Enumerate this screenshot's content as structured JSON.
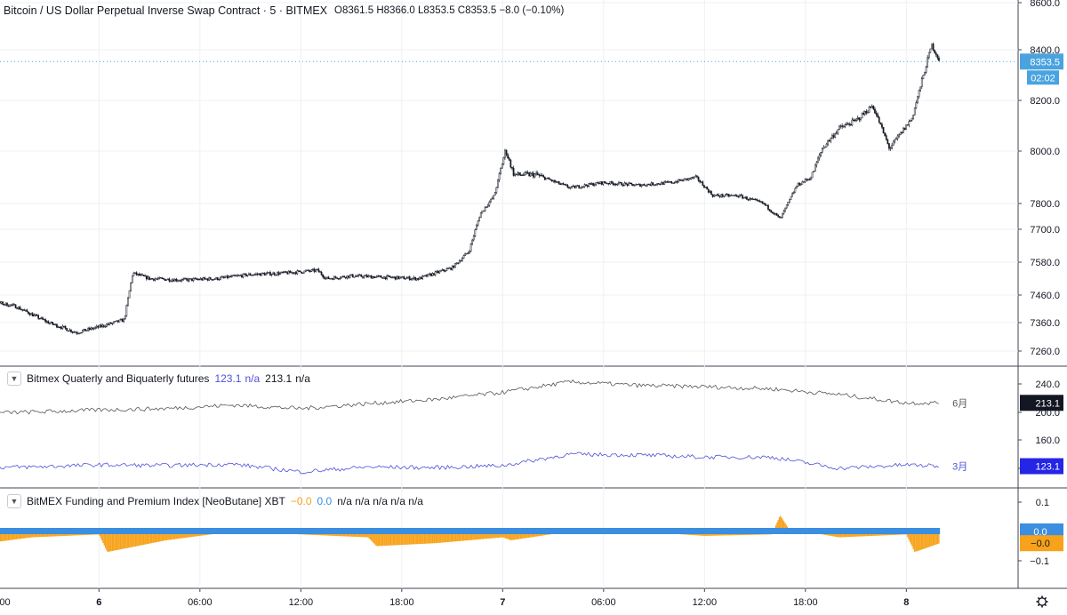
{
  "header": {
    "title": "Bitcoin / US Dollar Perpetual Inverse Swap Contract · 5 · BITMEX",
    "ohlc": "O8361.5  H8366.0  L8353.5  C8353.5  −8.0 (−0.10%)"
  },
  "main_axis": {
    "ticks": [
      "8600.0",
      "8400.0",
      "8200.0",
      "8000.0",
      "7800.0",
      "7700.0",
      "7580.0",
      "7460.0",
      "7360.0",
      "7260.0"
    ],
    "last_price": "8353.5",
    "countdown": "02:02"
  },
  "indicator1": {
    "name": "Bitmex Quaterly and Biquaterly futures",
    "value_a": "123.1",
    "value_a_na": "n/a",
    "value_b": "213.1",
    "value_b_na": "n/a",
    "ticks": [
      "240.0",
      "200.0",
      "160.0",
      "120.0"
    ],
    "badge_top": "213.1",
    "badge_bottom": "123.1",
    "label_top": "6月",
    "label_bottom": "3月",
    "color_a": "#4f4fd8",
    "color_b": "#555555"
  },
  "indicator2": {
    "name": "BitMEX Funding and Premium Index [NeoButane] XBT",
    "value_a": "−0.0",
    "value_b": "0.0",
    "tail": "n/a  n/a  n/a  n/a  n/a",
    "ticks": [
      "0.1",
      "−0.1"
    ],
    "badge_top": "0.0",
    "badge_bottom": "−0.0",
    "color_premium": "#f7a21a",
    "color_funding": "#3b8ee0"
  },
  "time_axis": {
    "labels": [
      "18:00",
      "6",
      "06:00",
      "12:00",
      "18:00",
      "7",
      "06:00",
      "12:00",
      "18:00",
      "8"
    ],
    "settings_icon": "gear-icon"
  },
  "chart_data": [
    {
      "type": "candlestick",
      "title": "Bitcoin / US Dollar Perpetual Inverse Swap Contract · 5 · BITMEX",
      "x": [
        "5 16:10",
        "5 17:20",
        "5 19:00",
        "5 21:00",
        "5 22:40",
        "6 00:00",
        "6 01:30",
        "6 02:00",
        "6 03:00",
        "6 05:00",
        "6 07:00",
        "6 09:00",
        "6 11:00",
        "6 13:00",
        "6 13:30",
        "6 15:00",
        "6 17:00",
        "6 19:00",
        "6 21:00",
        "6 22:00",
        "6 22:40",
        "6 23:30",
        "7 00:10",
        "7 00:40",
        "7 02:00",
        "7 04:00",
        "7 06:00",
        "7 08:00",
        "7 10:00",
        "7 11:30",
        "7 12:30",
        "7 14:00",
        "7 15:30",
        "7 16:30",
        "7 17:30",
        "7 18:20",
        "7 19:00",
        "7 20:00",
        "7 21:00",
        "7 22:00",
        "7 23:00",
        "8 00:20",
        "8 01:30",
        "8 02:00"
      ],
      "close": [
        7445,
        7440,
        7420,
        7360,
        7325,
        7345,
        7370,
        7540,
        7520,
        7515,
        7520,
        7535,
        7540,
        7550,
        7520,
        7530,
        7525,
        7520,
        7560,
        7620,
        7760,
        7830,
        8005,
        7910,
        7910,
        7860,
        7880,
        7870,
        7880,
        7900,
        7830,
        7830,
        7800,
        7740,
        7870,
        7900,
        8010,
        8090,
        8120,
        8180,
        8010,
        8130,
        8420,
        8353.5
      ],
      "yrange": [
        7200,
        8620
      ]
    },
    {
      "type": "line",
      "title": "Bitmex Quaterly and Biquaterly futures",
      "series": [
        {
          "name": "6月",
          "x": [
            "5 16:00",
            "5 20:00",
            "6 00:00",
            "6 04:00",
            "6 08:00",
            "6 12:00",
            "6 16:00",
            "6 20:00",
            "7 00:00",
            "7 04:00",
            "7 08:00",
            "7 12:00",
            "7 16:00",
            "7 20:00",
            "8 00:00",
            "8 02:00"
          ],
          "values": [
            198,
            200,
            203,
            205,
            210,
            205,
            212,
            218,
            228,
            243,
            238,
            236,
            233,
            225,
            213,
            213.1
          ]
        },
        {
          "name": "3月",
          "x": [
            "5 16:00",
            "5 20:00",
            "6 00:00",
            "6 04:00",
            "6 08:00",
            "6 12:00",
            "6 16:00",
            "6 20:00",
            "7 00:00",
            "7 04:00",
            "7 08:00",
            "7 12:00",
            "7 16:00",
            "7 20:00",
            "8 00:00",
            "8 02:00"
          ],
          "values": [
            121,
            122,
            125,
            124,
            126,
            115,
            122,
            121,
            124,
            140,
            139,
            136,
            136,
            120,
            125,
            123.1
          ]
        }
      ],
      "yticks": [
        120,
        160,
        200,
        240
      ]
    },
    {
      "type": "bar",
      "title": "BitMEX Funding and Premium Index [NeoButane] XBT",
      "series": [
        {
          "name": "Premium Index",
          "x": [
            "5 16:00",
            "5 20:00",
            "6 00:00",
            "6 00:30",
            "6 04:00",
            "6 08:00",
            "6 12:00",
            "6 16:00",
            "6 16:30",
            "6 20:00",
            "7 00:00",
            "7 00:30",
            "7 04:00",
            "7 08:00",
            "7 12:00",
            "7 16:00",
            "7 16:30",
            "7 17:00",
            "7 20:00",
            "8 00:00",
            "8 00:30",
            "8 02:00"
          ],
          "values": [
            -0.05,
            -0.02,
            -0.01,
            -0.07,
            -0.03,
            0,
            -0.01,
            -0.02,
            -0.05,
            -0.04,
            -0.02,
            -0.03,
            0,
            0,
            -0.015,
            -0.01,
            0.055,
            0.01,
            -0.02,
            -0.01,
            -0.07,
            -0.04
          ]
        }
      ],
      "yticks": [
        -0.1,
        0.1
      ]
    }
  ]
}
